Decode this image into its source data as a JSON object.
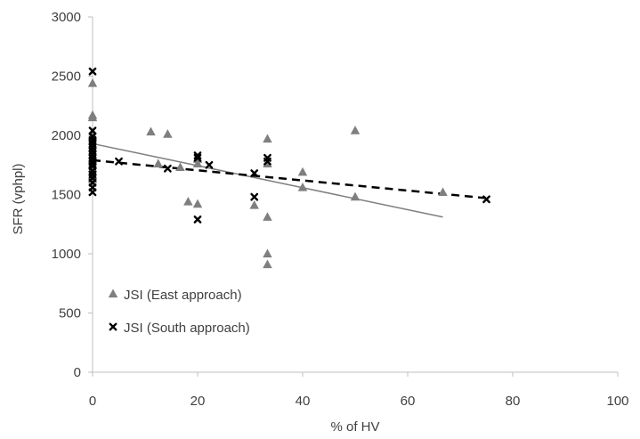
{
  "chart_data": {
    "type": "scatter",
    "title": "",
    "xlabel": "% of HV",
    "ylabel": "SFR (vphpl)",
    "xlim": [
      0,
      100
    ],
    "ylim": [
      0,
      3000
    ],
    "x_ticks": [
      "0",
      "20",
      "40",
      "60",
      "80",
      "100"
    ],
    "y_ticks": [
      "0",
      "500",
      "1000",
      "1500",
      "2000",
      "2500",
      "3000"
    ],
    "grid": false,
    "legend_position": "bottom-left",
    "series": [
      {
        "name": "JSI (East approach)",
        "marker": "triangle",
        "color": "#7f7f7f",
        "points": [
          [
            0,
            2440
          ],
          [
            0,
            2170
          ],
          [
            0,
            2150
          ],
          [
            0,
            2000
          ],
          [
            0,
            1980
          ],
          [
            0,
            1950
          ],
          [
            0,
            1920
          ],
          [
            0,
            1890
          ],
          [
            0,
            1860
          ],
          [
            0,
            1830
          ],
          [
            0,
            1800
          ],
          [
            0,
            1780
          ],
          [
            0,
            1750
          ],
          [
            0,
            1720
          ],
          [
            0,
            1690
          ],
          [
            0,
            1660
          ],
          [
            0,
            1630
          ],
          [
            11.1,
            2030
          ],
          [
            12.5,
            1760
          ],
          [
            14.3,
            2010
          ],
          [
            16.7,
            1730
          ],
          [
            18.2,
            1440
          ],
          [
            20,
            1800
          ],
          [
            20,
            1760
          ],
          [
            20,
            1420
          ],
          [
            30.8,
            1410
          ],
          [
            33.3,
            1970
          ],
          [
            33.3,
            1760
          ],
          [
            33.3,
            1310
          ],
          [
            33.3,
            1000
          ],
          [
            33.3,
            910
          ],
          [
            40,
            1690
          ],
          [
            40,
            1560
          ],
          [
            50,
            2040
          ],
          [
            50,
            1480
          ],
          [
            66.7,
            1520
          ]
        ],
        "trendline": {
          "style": "solid",
          "x": [
            0,
            66.7
          ],
          "y": [
            1930,
            1310
          ]
        }
      },
      {
        "name": "JSI (South approach)",
        "marker": "x",
        "color": "#000000",
        "points": [
          [
            0,
            2540
          ],
          [
            0,
            2040
          ],
          [
            0,
            1990
          ],
          [
            0,
            1960
          ],
          [
            0,
            1930
          ],
          [
            0,
            1900
          ],
          [
            0,
            1870
          ],
          [
            0,
            1840
          ],
          [
            0,
            1810
          ],
          [
            0,
            1780
          ],
          [
            0,
            1760
          ],
          [
            0,
            1740
          ],
          [
            0,
            1700
          ],
          [
            0,
            1670
          ],
          [
            0,
            1640
          ],
          [
            0,
            1600
          ],
          [
            0,
            1560
          ],
          [
            0,
            1520
          ],
          [
            5,
            1780
          ],
          [
            14.3,
            1720
          ],
          [
            20,
            1830
          ],
          [
            20,
            1810
          ],
          [
            20,
            1290
          ],
          [
            22.2,
            1750
          ],
          [
            30.8,
            1680
          ],
          [
            30.8,
            1480
          ],
          [
            33.3,
            1810
          ],
          [
            33.3,
            1780
          ],
          [
            75,
            1460
          ]
        ],
        "trendline": {
          "style": "dashed",
          "x": [
            0,
            75
          ],
          "y": [
            1790,
            1470
          ]
        }
      }
    ]
  }
}
